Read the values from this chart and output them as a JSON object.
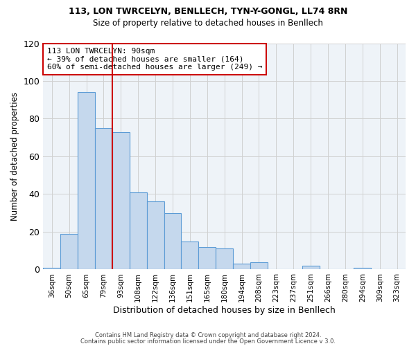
{
  "title1": "113, LON TWRCELYN, BENLLECH, TYN-Y-GONGL, LL74 8RN",
  "title2": "Size of property relative to detached houses in Benllech",
  "xlabel": "Distribution of detached houses by size in Benllech",
  "ylabel": "Number of detached properties",
  "categories": [
    "36sqm",
    "50sqm",
    "65sqm",
    "79sqm",
    "93sqm",
    "108sqm",
    "122sqm",
    "136sqm",
    "151sqm",
    "165sqm",
    "180sqm",
    "194sqm",
    "208sqm",
    "223sqm",
    "237sqm",
    "251sqm",
    "266sqm",
    "280sqm",
    "294sqm",
    "309sqm",
    "323sqm"
  ],
  "values": [
    1,
    19,
    94,
    75,
    73,
    41,
    36,
    30,
    15,
    12,
    11,
    3,
    4,
    0,
    0,
    2,
    0,
    0,
    1,
    0,
    0
  ],
  "bar_color": "#c5d8ed",
  "bar_edge_color": "#5b9bd5",
  "reference_line_idx": 4,
  "reference_line_color": "#cc0000",
  "annotation_line1": "113 LON TWRCELYN: 90sqm",
  "annotation_line2": "← 39% of detached houses are smaller (164)",
  "annotation_line3": "60% of semi-detached houses are larger (249) →",
  "annotation_box_color": "#cc0000",
  "ylim": [
    0,
    120
  ],
  "yticks": [
    0,
    20,
    40,
    60,
    80,
    100,
    120
  ],
  "footer1": "Contains HM Land Registry data © Crown copyright and database right 2024.",
  "footer2": "Contains public sector information licensed under the Open Government Licence v 3.0.",
  "background_color": "#ffffff",
  "grid_color": "#d0d0d0"
}
